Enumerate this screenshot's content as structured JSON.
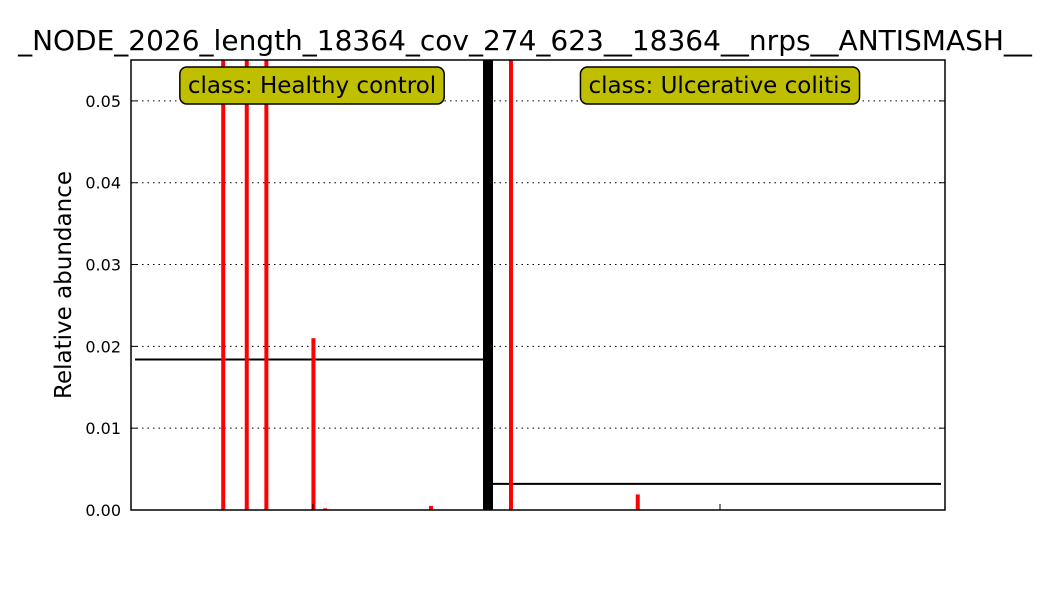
{
  "chart_data": {
    "type": "bar",
    "title": "_NODE_2026_length_18364_cov_274_623__18364__nrps__ANTISMASH__",
    "ylabel": "Relative abundance",
    "xlabel": "",
    "ylim": [
      0,
      0.055
    ],
    "yticks": [
      "0.00",
      "0.01",
      "0.02",
      "0.03",
      "0.04",
      "0.05"
    ],
    "ytick_values": [
      0,
      0.01,
      0.02,
      0.03,
      0.04,
      0.05
    ],
    "grid": "horizontal dotted",
    "bar_color": "#ff0000",
    "box_color": "#bfbf00",
    "classes": [
      {
        "label": "class: Healthy control",
        "mean": 0.0184,
        "samples": [
          0,
          0,
          0,
          0,
          0,
          0,
          0,
          0,
          0,
          0,
          0,
          0,
          0,
          0,
          0,
          0,
          0,
          0,
          0,
          0,
          0,
          0,
          0.06,
          0,
          0,
          0,
          0,
          0,
          0.06,
          0,
          0,
          0,
          0,
          0.06,
          0,
          0,
          0,
          0,
          0,
          0,
          0,
          0,
          0,
          0,
          0,
          0.021,
          0,
          0,
          0.0002,
          0,
          0,
          0,
          0,
          0,
          0,
          0,
          0,
          0,
          0,
          0,
          0,
          0,
          0,
          0,
          0,
          0,
          0,
          0,
          0,
          0,
          0,
          0,
          0,
          0,
          0,
          0.0005,
          0,
          0,
          0,
          0,
          0,
          0,
          0,
          0,
          0,
          0,
          0,
          0,
          0
        ]
      },
      {
        "label": "class: Ulcerative colitis",
        "mean": 0.0032,
        "samples": [
          0,
          0,
          0,
          0,
          0,
          0,
          0,
          0,
          0.06,
          0,
          0,
          0,
          0,
          0,
          0,
          0,
          0,
          0,
          0,
          0,
          0,
          0,
          0,
          0,
          0,
          0,
          0,
          0,
          0,
          0,
          0,
          0,
          0,
          0,
          0,
          0,
          0,
          0,
          0,
          0,
          0,
          0,
          0,
          0,
          0,
          0,
          0,
          0,
          0,
          0,
          0,
          0,
          0,
          0,
          0,
          0,
          0,
          0,
          0,
          0,
          0,
          0,
          0,
          0,
          0,
          0,
          0,
          0,
          0.0019,
          0,
          0,
          0,
          0,
          0,
          0,
          0,
          0,
          0,
          0,
          0,
          0,
          0,
          0,
          0,
          0,
          0,
          0,
          0,
          0,
          0,
          0,
          0,
          0,
          0,
          0,
          0,
          0,
          0,
          0,
          0,
          0,
          0,
          0,
          0,
          0,
          0,
          0,
          0,
          0,
          0,
          0,
          0,
          0,
          0,
          0,
          0,
          0,
          0,
          0,
          0,
          0,
          0,
          0,
          0,
          0,
          0,
          0,
          0,
          0,
          0,
          0,
          0,
          0,
          0,
          0,
          0,
          0,
          0,
          0,
          0,
          0,
          0,
          0,
          0,
          0,
          0,
          0,
          0,
          0,
          0,
          0,
          0,
          0,
          0,
          0,
          0,
          0,
          0,
          0,
          0,
          0,
          0,
          0,
          0,
          0,
          0,
          0,
          0,
          0,
          0,
          0,
          0,
          0,
          0,
          0,
          0,
          0,
          0,
          0,
          0,
          0,
          0,
          0,
          0,
          0,
          0,
          0,
          0,
          0,
          0,
          0,
          0,
          0,
          0,
          0,
          0,
          0,
          0,
          0,
          0,
          0,
          0,
          0,
          0,
          0,
          0,
          0,
          0,
          0,
          0,
          0,
          0
        ]
      }
    ]
  }
}
